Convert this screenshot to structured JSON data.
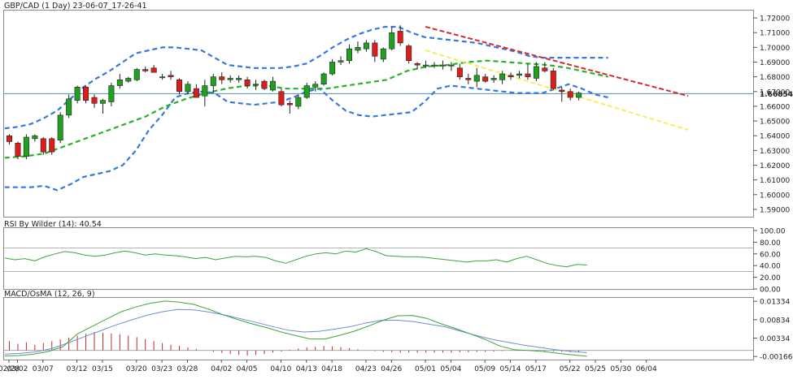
{
  "chart_data": {
    "type": "candlestick",
    "title": "GBP/CAD (1 Day) 23-06-07_17-26-41",
    "price_axis": {
      "range": [
        1.585,
        1.725
      ],
      "ticks": [
        "1.72000",
        "1.71000",
        "1.70000",
        "1.69000",
        "1.68000",
        "1.67000",
        "1.66000",
        "1.65000",
        "1.64000",
        "1.63000",
        "1.62000",
        "1.61000",
        "1.60000",
        "1.59000"
      ],
      "tick_values": [
        1.72,
        1.71,
        1.7,
        1.69,
        1.68,
        1.67,
        1.66,
        1.65,
        1.64,
        1.63,
        1.62,
        1.61,
        1.6,
        1.59
      ],
      "current_price_label": "1.66854",
      "current_price": 1.66854
    },
    "x_axis": {
      "labels": [
        "02/28",
        "03/02",
        "03/07",
        "03/12",
        "03/15",
        "03/20",
        "03/23",
        "03/28",
        "04/02",
        "04/05",
        "04/10",
        "04/13",
        "04/18",
        "04/23",
        "04/26",
        "05/01",
        "05/04",
        "05/09",
        "05/14",
        "05/17",
        "05/22",
        "05/25",
        "05/30",
        "06/04"
      ],
      "label_index": [
        0,
        1,
        4,
        8,
        11,
        15,
        18,
        21,
        25,
        28,
        32,
        35,
        38,
        42,
        45,
        49,
        52,
        56,
        59,
        62,
        66,
        69,
        72,
        75
      ]
    },
    "candles": [
      {
        "o": 1.64,
        "h": 1.641,
        "l": 1.634,
        "c": 1.636
      },
      {
        "o": 1.635,
        "h": 1.636,
        "l": 1.624,
        "c": 1.626
      },
      {
        "o": 1.626,
        "h": 1.641,
        "l": 1.624,
        "c": 1.639
      },
      {
        "o": 1.638,
        "h": 1.641,
        "l": 1.636,
        "c": 1.64
      },
      {
        "o": 1.638,
        "h": 1.639,
        "l": 1.627,
        "c": 1.629
      },
      {
        "o": 1.638,
        "h": 1.639,
        "l": 1.627,
        "c": 1.629
      },
      {
        "o": 1.637,
        "h": 1.656,
        "l": 1.635,
        "c": 1.654
      },
      {
        "o": 1.654,
        "h": 1.668,
        "l": 1.652,
        "c": 1.665
      },
      {
        "o": 1.664,
        "h": 1.674,
        "l": 1.662,
        "c": 1.673
      },
      {
        "o": 1.673,
        "h": 1.674,
        "l": 1.662,
        "c": 1.664
      },
      {
        "o": 1.666,
        "h": 1.668,
        "l": 1.659,
        "c": 1.662
      },
      {
        "o": 1.662,
        "h": 1.665,
        "l": 1.655,
        "c": 1.664
      },
      {
        "o": 1.663,
        "h": 1.676,
        "l": 1.66,
        "c": 1.674
      },
      {
        "o": 1.674,
        "h": 1.682,
        "l": 1.672,
        "c": 1.678
      },
      {
        "o": 1.677,
        "h": 1.68,
        "l": 1.676,
        "c": 1.679
      },
      {
        "o": 1.678,
        "h": 1.686,
        "l": 1.677,
        "c": 1.685
      },
      {
        "o": 1.685,
        "h": 1.687,
        "l": 1.683,
        "c": 1.684
      },
      {
        "o": 1.686,
        "h": 1.688,
        "l": 1.683,
        "c": 1.683
      },
      {
        "o": 1.68,
        "h": 1.682,
        "l": 1.678,
        "c": 1.68
      },
      {
        "o": 1.681,
        "h": 1.684,
        "l": 1.678,
        "c": 1.68
      },
      {
        "o": 1.678,
        "h": 1.679,
        "l": 1.668,
        "c": 1.67
      },
      {
        "o": 1.67,
        "h": 1.677,
        "l": 1.668,
        "c": 1.675
      },
      {
        "o": 1.672,
        "h": 1.675,
        "l": 1.666,
        "c": 1.666
      },
      {
        "o": 1.667,
        "h": 1.678,
        "l": 1.66,
        "c": 1.674
      },
      {
        "o": 1.674,
        "h": 1.682,
        "l": 1.669,
        "c": 1.68
      },
      {
        "o": 1.68,
        "h": 1.683,
        "l": 1.675,
        "c": 1.678
      },
      {
        "o": 1.678,
        "h": 1.681,
        "l": 1.676,
        "c": 1.679
      },
      {
        "o": 1.678,
        "h": 1.681,
        "l": 1.676,
        "c": 1.679
      },
      {
        "o": 1.678,
        "h": 1.68,
        "l": 1.672,
        "c": 1.674
      },
      {
        "o": 1.675,
        "h": 1.678,
        "l": 1.671,
        "c": 1.675
      },
      {
        "o": 1.677,
        "h": 1.678,
        "l": 1.671,
        "c": 1.672
      },
      {
        "o": 1.671,
        "h": 1.68,
        "l": 1.67,
        "c": 1.677
      },
      {
        "o": 1.67,
        "h": 1.672,
        "l": 1.66,
        "c": 1.661
      },
      {
        "o": 1.662,
        "h": 1.664,
        "l": 1.655,
        "c": 1.661
      },
      {
        "o": 1.66,
        "h": 1.668,
        "l": 1.658,
        "c": 1.666
      },
      {
        "o": 1.666,
        "h": 1.676,
        "l": 1.665,
        "c": 1.674
      },
      {
        "o": 1.673,
        "h": 1.677,
        "l": 1.67,
        "c": 1.675
      },
      {
        "o": 1.675,
        "h": 1.683,
        "l": 1.674,
        "c": 1.682
      },
      {
        "o": 1.682,
        "h": 1.692,
        "l": 1.681,
        "c": 1.69
      },
      {
        "o": 1.69,
        "h": 1.694,
        "l": 1.688,
        "c": 1.691
      },
      {
        "o": 1.691,
        "h": 1.702,
        "l": 1.689,
        "c": 1.699
      },
      {
        "o": 1.698,
        "h": 1.704,
        "l": 1.696,
        "c": 1.7
      },
      {
        "o": 1.699,
        "h": 1.705,
        "l": 1.697,
        "c": 1.703
      },
      {
        "o": 1.703,
        "h": 1.705,
        "l": 1.69,
        "c": 1.694
      },
      {
        "o": 1.692,
        "h": 1.7,
        "l": 1.69,
        "c": 1.699
      },
      {
        "o": 1.699,
        "h": 1.714,
        "l": 1.698,
        "c": 1.71
      },
      {
        "o": 1.711,
        "h": 1.715,
        "l": 1.701,
        "c": 1.703
      },
      {
        "o": 1.701,
        "h": 1.702,
        "l": 1.689,
        "c": 1.691
      },
      {
        "o": 1.689,
        "h": 1.69,
        "l": 1.685,
        "c": 1.688
      },
      {
        "o": 1.688,
        "h": 1.691,
        "l": 1.686,
        "c": 1.688
      },
      {
        "o": 1.688,
        "h": 1.69,
        "l": 1.686,
        "c": 1.688
      },
      {
        "o": 1.688,
        "h": 1.691,
        "l": 1.685,
        "c": 1.688
      },
      {
        "o": 1.688,
        "h": 1.69,
        "l": 1.684,
        "c": 1.688
      },
      {
        "o": 1.686,
        "h": 1.689,
        "l": 1.678,
        "c": 1.68
      },
      {
        "o": 1.679,
        "h": 1.682,
        "l": 1.675,
        "c": 1.678
      },
      {
        "o": 1.677,
        "h": 1.686,
        "l": 1.673,
        "c": 1.681
      },
      {
        "o": 1.68,
        "h": 1.682,
        "l": 1.676,
        "c": 1.677
      },
      {
        "o": 1.678,
        "h": 1.681,
        "l": 1.676,
        "c": 1.679
      },
      {
        "o": 1.678,
        "h": 1.684,
        "l": 1.675,
        "c": 1.682
      },
      {
        "o": 1.681,
        "h": 1.683,
        "l": 1.678,
        "c": 1.68
      },
      {
        "o": 1.681,
        "h": 1.684,
        "l": 1.679,
        "c": 1.682
      },
      {
        "o": 1.682,
        "h": 1.689,
        "l": 1.678,
        "c": 1.68
      },
      {
        "o": 1.679,
        "h": 1.69,
        "l": 1.677,
        "c": 1.687
      },
      {
        "o": 1.686,
        "h": 1.69,
        "l": 1.683,
        "c": 1.684
      },
      {
        "o": 1.684,
        "h": 1.686,
        "l": 1.671,
        "c": 1.672
      },
      {
        "o": 1.671,
        "h": 1.673,
        "l": 1.663,
        "c": 1.67
      },
      {
        "o": 1.67,
        "h": 1.672,
        "l": 1.664,
        "c": 1.666
      },
      {
        "o": 1.666,
        "h": 1.67,
        "l": 1.664,
        "c": 1.669
      }
    ],
    "overlays": {
      "bollinger_upper": [
        1.645,
        1.646,
        1.648,
        1.652,
        1.657,
        1.665,
        1.673,
        1.679,
        1.684,
        1.69,
        1.696,
        1.698,
        1.7,
        1.7,
        1.699,
        1.698,
        1.693,
        1.688,
        1.687,
        1.686,
        1.686,
        1.686,
        1.687,
        1.689,
        1.694,
        1.7,
        1.705,
        1.709,
        1.712,
        1.714,
        1.714,
        1.71,
        1.707,
        1.706,
        1.705,
        1.704,
        1.703,
        1.701,
        1.699,
        1.697,
        1.694,
        1.693,
        1.693,
        1.693,
        1.693,
        1.693,
        1.693
      ],
      "bollinger_lower": [
        1.605,
        1.605,
        1.605,
        1.606,
        1.603,
        1.607,
        1.612,
        1.614,
        1.616,
        1.62,
        1.63,
        1.644,
        1.654,
        1.666,
        1.669,
        1.67,
        1.669,
        1.663,
        1.662,
        1.661,
        1.662,
        1.663,
        1.666,
        1.67,
        1.672,
        1.664,
        1.657,
        1.654,
        1.653,
        1.654,
        1.655,
        1.656,
        1.663,
        1.672,
        1.674,
        1.673,
        1.672,
        1.671,
        1.67,
        1.669,
        1.669,
        1.669,
        1.672,
        1.675,
        1.672,
        1.668,
        1.666
      ],
      "middle_band": [
        1.625,
        1.626,
        1.628,
        1.633,
        1.638,
        1.643,
        1.648,
        1.653,
        1.66,
        1.665,
        1.669,
        1.672,
        1.674,
        1.674,
        1.672,
        1.672,
        1.672,
        1.674,
        1.676,
        1.678,
        1.684,
        1.687,
        1.688,
        1.69,
        1.691,
        1.69,
        1.689,
        1.688,
        1.686,
        1.683,
        1.68
      ]
    },
    "trendlines": [
      {
        "color": "#d62a2a",
        "from": [
          49,
          1.714
        ],
        "to": [
          78,
          1.667
        ]
      },
      {
        "color": "#f5ef5e",
        "from": [
          49,
          1.698
        ],
        "to": [
          78,
          1.644
        ]
      }
    ],
    "rsi": {
      "label": "RSI By Wilder (14): 40.54",
      "ticks": [
        "100.00",
        "80.00",
        "60.00",
        "40.00",
        "20.00",
        "00.00"
      ],
      "tick_values": [
        100,
        80,
        60,
        40,
        20,
        0
      ],
      "levels": [
        70,
        30
      ],
      "values": [
        53,
        50,
        52,
        48,
        55,
        60,
        64,
        62,
        58,
        56,
        58,
        62,
        65,
        62,
        58,
        60,
        58,
        57,
        55,
        52,
        54,
        50,
        53,
        56,
        55,
        56,
        54,
        48,
        44,
        50,
        56,
        60,
        62,
        60,
        65,
        63,
        69,
        64,
        57,
        56,
        55,
        55,
        54,
        52,
        50,
        48,
        46,
        48,
        48,
        50,
        46,
        52,
        56,
        50,
        44,
        40,
        38,
        42,
        41
      ],
      "current": 40.54
    },
    "macd": {
      "label": "MACD/OsMA (12, 26, 9)",
      "ticks": [
        "0.01334",
        "0.00834",
        "0.00334",
        "-0.00166"
      ],
      "tick_values": [
        0.01334,
        0.00834,
        0.00334,
        -0.00166
      ],
      "macd_line": [
        -0.0015,
        -0.0014,
        -0.001,
        -0.0003,
        0.001,
        0.0045,
        0.0065,
        0.0085,
        0.0105,
        0.0118,
        0.0128,
        0.0134,
        0.0131,
        0.0125,
        0.0112,
        0.0097,
        0.0084,
        0.0072,
        0.0062,
        0.005,
        0.004,
        0.0031,
        0.0031,
        0.0041,
        0.0052,
        0.0066,
        0.0082,
        0.0094,
        0.0095,
        0.0087,
        0.0072,
        0.0059,
        0.0045,
        0.003,
        0.0012,
        0.0002,
        0.0,
        -0.0003,
        -0.0008,
        -0.0012,
        -0.0016
      ],
      "signal_line": [
        -0.001,
        -0.0008,
        -0.0004,
        0.0005,
        0.002,
        0.0036,
        0.0052,
        0.0068,
        0.0082,
        0.0095,
        0.0105,
        0.0111,
        0.011,
        0.0104,
        0.0096,
        0.0086,
        0.0076,
        0.0065,
        0.0055,
        0.005,
        0.0052,
        0.0058,
        0.0065,
        0.0075,
        0.0082,
        0.0082,
        0.0078,
        0.0071,
        0.0064,
        0.0052,
        0.004,
        0.003,
        0.0022,
        0.0014,
        0.0008,
        0.0002,
        -0.0003,
        -0.0006
      ],
      "osma_hist": [
        0.0025,
        0.0018,
        0.0022,
        0.0015,
        0.002,
        0.0025,
        0.003,
        0.0035,
        0.004,
        0.0045,
        0.005,
        0.0048,
        0.0046,
        0.0044,
        0.004,
        0.0036,
        0.0031,
        0.0025,
        0.002,
        0.0015,
        0.0012,
        0.0008,
        0.0004,
        0.0,
        -0.0004,
        -0.0007,
        -0.001,
        -0.0012,
        -0.0014,
        -0.0012,
        -0.001,
        -0.0006,
        -0.0003,
        0.0002,
        0.0005,
        0.0008,
        0.001,
        0.0012,
        0.0011,
        0.0009,
        0.0006,
        0.0003,
        0.0,
        -0.0002,
        -0.0004,
        -0.0005,
        -0.0006,
        -0.0006,
        -0.0006,
        -0.0006,
        -0.0006,
        -0.0006,
        -0.0006,
        -0.0005,
        -0.0005,
        -0.0004,
        -0.0004,
        -0.0003,
        -0.0002,
        -0.0001,
        -0.0001,
        0.0,
        -0.0001,
        -0.0002,
        -0.0003,
        -0.0004,
        -0.0005,
        -0.0004
      ]
    },
    "colors": {
      "bull_candle": "#1fa11f",
      "bear_candle": "#dd1c1c",
      "bollinger": "#3478e0",
      "middle_band": "#27b327",
      "price_line": "#4d8fbf",
      "rsi_line": "#3aa63a",
      "macd_line": "#6b8fd6",
      "signal_line": "#3aa63a",
      "osma_hist": "#c22a2a",
      "grid": "#c8c8c8"
    }
  }
}
